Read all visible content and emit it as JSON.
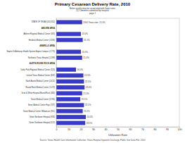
{
  "chart_data": {
    "type": "bar",
    "orientation": "horizontal",
    "title": "Primary Cesarean Delivery Rate, 2010",
    "subtitle": [
      "Better quality may be associated with lower rates",
      "(1) Comment submitted by hospital",
      "page 1"
    ],
    "x_label": "Utilization Rate",
    "source": "Source: Texas Health Care Information Collection: Texas Hospital Inpatient Discharge Public Use Data File, 2010",
    "categories": [
      "STATE OF TEXAS (262,352)",
      "ABILENE AREA",
      "Abilene Regional Medical Center (585)",
      "Hendrick Medical Center (1,934)",
      "AMARILLO AREA",
      "Baptist St Anthonys Health System-Baptist Campus (1,774)",
      "Northwest Texas Hospital (1,598)",
      "AUSTIN-ROUND ROCK AREA",
      "Cedar Park Regional Medical Center (524)",
      "Central Texas Medical Center (832)",
      "North Austin Medical Center (2,614)",
      "Round Rock Medical Center (1,470)",
      "Scott & White Hospital Round Rock (384)",
      "Seton Medical Center (4,766)",
      "Seton Medical Center Hays (787)",
      "Seton Medical Center Williamson (955)",
      "Seton Northwest Hospital (933)",
      "Seton Southwest Hospital (513)"
    ],
    "values": [
      21.0,
      null,
      20.0,
      21.5,
      null,
      20.0,
      21.0,
      null,
      16.0,
      22.0,
      22.5,
      23.0,
      21.0,
      19.5,
      22.5,
      21.5,
      24.0,
      23.5
    ],
    "value_labels": [
      "2010 Texas rate: 21.0%",
      null,
      "20.0%",
      "21.5%",
      null,
      "20.0%",
      "21.0%",
      null,
      "16.0%",
      "22.0%",
      "22.5%",
      "23.0%",
      "21.0%",
      "19.5%",
      "22.5%",
      "21.5%",
      "24.0%",
      "23.5%"
    ],
    "data_labels": true,
    "color": "#3a3ac8",
    "xlim": [
      0,
      100
    ],
    "xticks": [
      0,
      10,
      20,
      30,
      40,
      50,
      60,
      70,
      80,
      90,
      100
    ],
    "grid": false
  }
}
